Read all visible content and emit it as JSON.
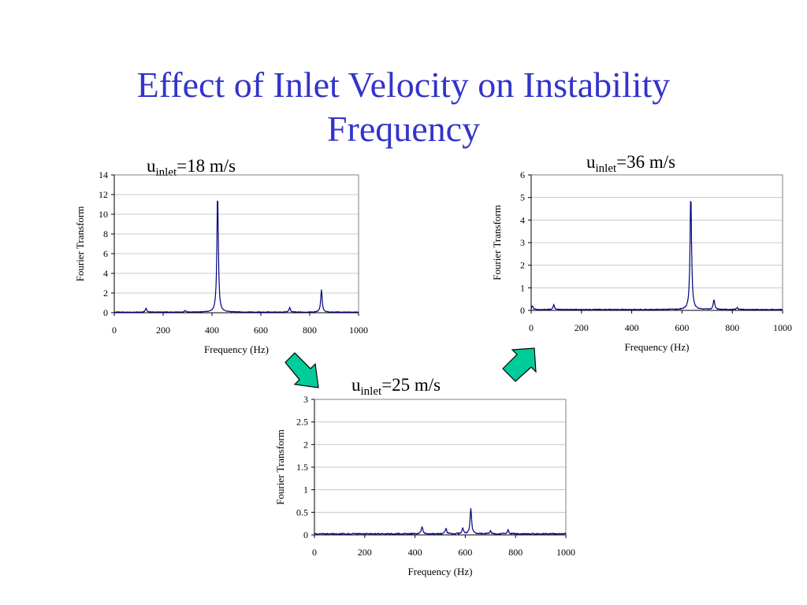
{
  "slide": {
    "title_line1": "Effect of Inlet Velocity on Instability",
    "title_line2": "Frequency"
  },
  "colors": {
    "title": "#3333cc",
    "series": "#000080",
    "arrow_fill": "#00cc99",
    "grid": "#c8c8c8"
  },
  "chart_data": [
    {
      "id": "c18",
      "type": "line",
      "title_main": "u",
      "title_sub": "inlet",
      "title_rest": "=18 m/s",
      "xlabel": "Frequency (Hz)",
      "ylabel": "Fourier Transform",
      "xlim": [
        0,
        1000
      ],
      "ylim": [
        0,
        14
      ],
      "xticks": [
        0,
        200,
        400,
        600,
        800,
        1000
      ],
      "yticks": [
        0,
        2,
        4,
        6,
        8,
        10,
        12,
        14
      ],
      "grid": true,
      "series": [
        {
          "color": "#000080",
          "baseline": 0.05,
          "peaks": [
            [
              130,
              0.4
            ],
            [
              290,
              0.15
            ],
            [
              423,
              12.2
            ],
            [
              718,
              0.45
            ],
            [
              848,
              2.3
            ]
          ]
        }
      ]
    },
    {
      "id": "c36",
      "type": "line",
      "title_main": "u",
      "title_sub": "inlet",
      "title_rest": "=36 m/s",
      "xlabel": "Frequency (Hz)",
      "ylabel": "Fourier Transform",
      "xlim": [
        0,
        1000
      ],
      "ylim": [
        0,
        6
      ],
      "xticks": [
        0,
        200,
        400,
        600,
        800,
        1000
      ],
      "yticks": [
        0,
        1,
        2,
        3,
        4,
        5,
        6
      ],
      "grid": true,
      "series": [
        {
          "color": "#000080",
          "baseline": 0.03,
          "peaks": [
            [
              5,
              0.15
            ],
            [
              90,
              0.2
            ],
            [
              635,
              5.15
            ],
            [
              727,
              0.45
            ],
            [
              820,
              0.08
            ]
          ]
        }
      ]
    },
    {
      "id": "c25",
      "type": "line",
      "title_main": "u",
      "title_sub": "inlet",
      "title_rest": "=25 m/s",
      "xlabel": "Frequency (Hz)",
      "ylabel": "Fourier Transform",
      "xlim": [
        0,
        1000
      ],
      "ylim": [
        0,
        3
      ],
      "xticks": [
        0,
        200,
        400,
        600,
        800,
        1000
      ],
      "yticks": [
        0,
        0.5,
        1,
        1.5,
        2,
        2.5,
        3
      ],
      "grid": true,
      "series": [
        {
          "color": "#000080",
          "baseline": 0.02,
          "peaks": [
            [
              428,
              0.16
            ],
            [
              523,
              0.12
            ],
            [
              590,
              0.12
            ],
            [
              622,
              0.57
            ],
            [
              700,
              0.06
            ],
            [
              770,
              0.08
            ]
          ]
        }
      ]
    }
  ]
}
